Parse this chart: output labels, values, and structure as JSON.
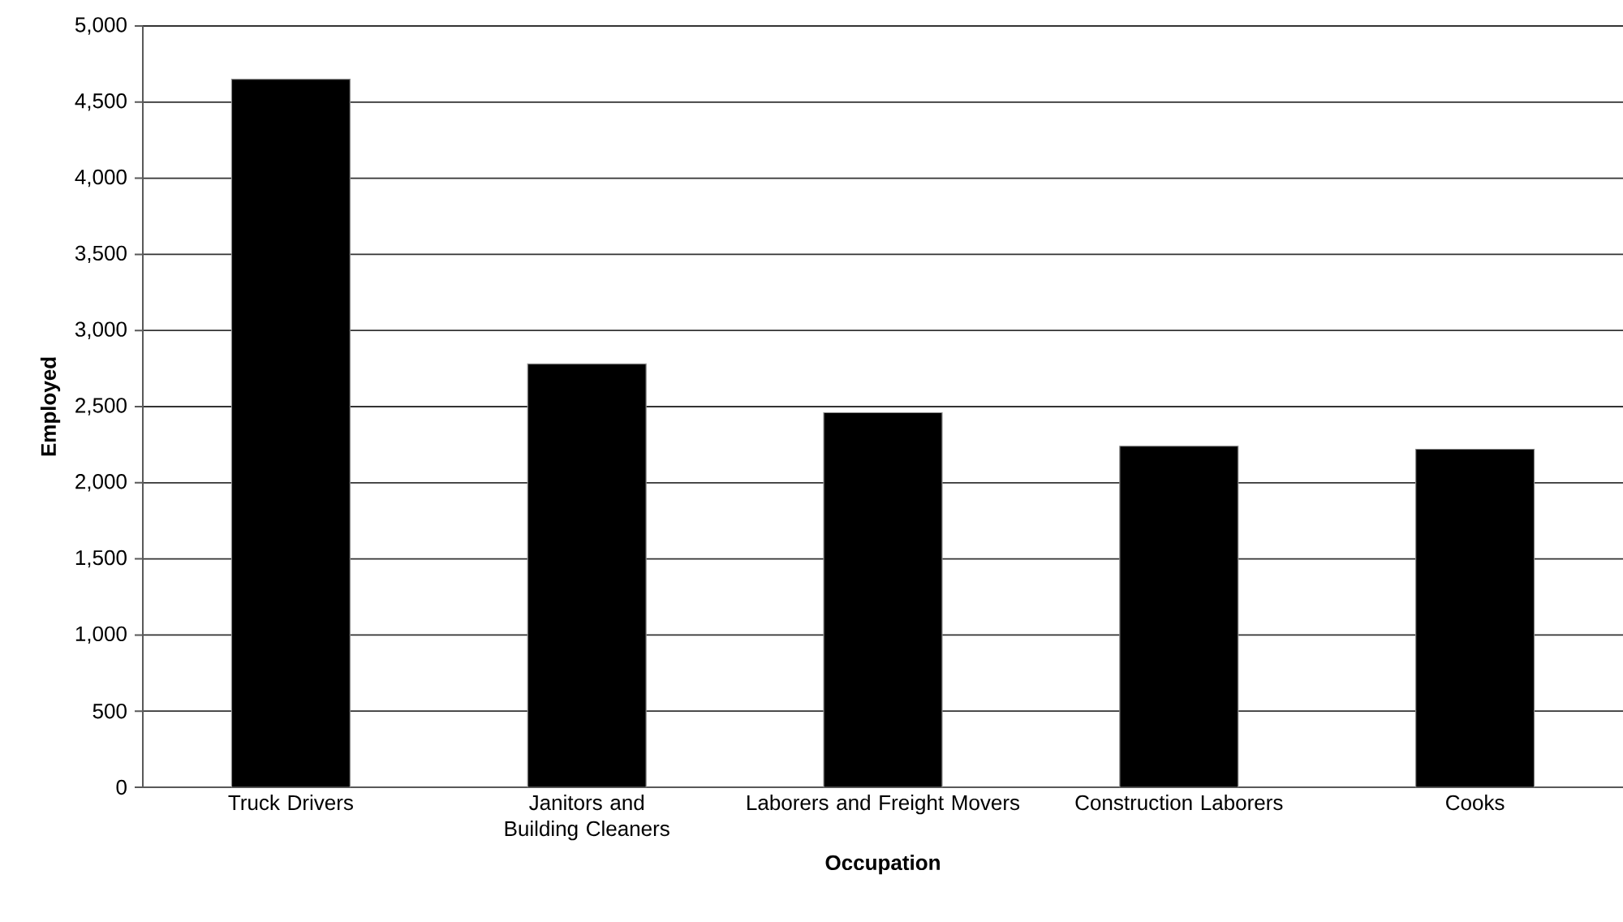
{
  "chart_data": {
    "type": "bar",
    "xlabel": "Occupation",
    "ylabel": "Employed",
    "categories": [
      "Truck Drivers",
      "Janitors and Building Cleaners",
      "Laborers and Freight Movers",
      "Construction Laborers",
      "Cooks"
    ],
    "values": [
      4650,
      2780,
      2460,
      2240,
      2220
    ],
    "color": "#000000",
    "ylim": [
      0,
      5000
    ],
    "yticks": [
      0,
      500,
      {
        "value": 1000,
        "label": "1,000"
      },
      {
        "value": 1500,
        "label": "1,500"
      },
      {
        "value": 2000,
        "label": "2,000"
      },
      {
        "value": 2500,
        "label": "2,500"
      },
      {
        "value": 3000,
        "label": "3,000"
      },
      {
        "value": 3500,
        "label": "3,500"
      },
      {
        "value": 4000,
        "label": "4,000"
      },
      {
        "value": 4500,
        "label": "4,500"
      },
      {
        "value": 5000,
        "label": "5,000"
      }
    ],
    "grid": "y"
  }
}
